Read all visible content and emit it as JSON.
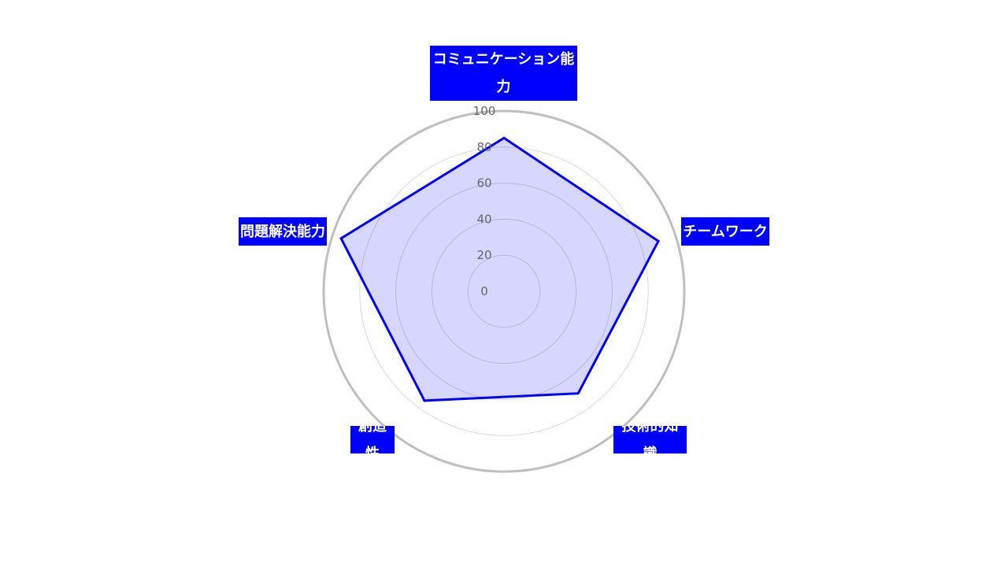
{
  "colors": {
    "series_line": "#0000ff",
    "series_fill": "rgba(0,0,255,0.16)",
    "label_bg": "#0000ff",
    "label_text": "#ffffff",
    "outer_ring": "#bfbfbf",
    "grid_ring": "#d9d9d9",
    "tick_text": "#666666"
  },
  "chart_data": {
    "type": "radar",
    "title": "",
    "categories": [
      "コミュニケーション能力",
      "チームワーク",
      "技術的知識",
      "創造性",
      "問題解決能力"
    ],
    "series": [
      {
        "values": [
          85,
          90,
          70,
          75,
          95
        ]
      }
    ],
    "rlim": [
      0,
      100
    ],
    "ticks": [
      "0",
      "20",
      "40",
      "60",
      "80",
      "100"
    ],
    "grid": true,
    "legend": "none"
  }
}
